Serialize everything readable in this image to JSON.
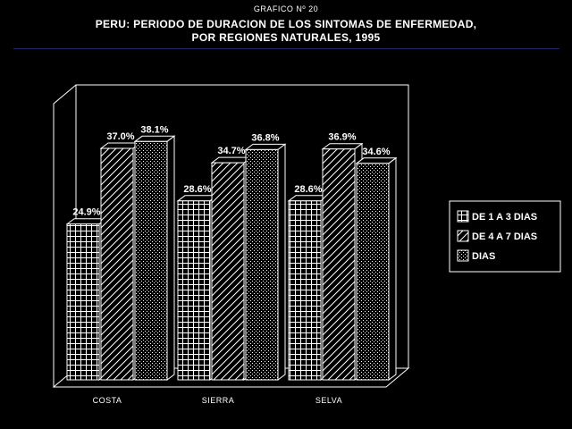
{
  "header": {
    "supertitle": "GRAFICO Nº 20",
    "title_line1": "PERU: PERIODO DE DURACION DE LOS SINTOMAS DE ENFERMEDAD,",
    "title_line2": "POR REGIONES NATURALES, 1995"
  },
  "colors": {
    "background": "#000000",
    "foreground": "#ffffff",
    "rule": "#1c1ca8"
  },
  "chart_data": {
    "type": "bar",
    "three_d": true,
    "categories": [
      "COSTA",
      "SIERRA",
      "SELVA"
    ],
    "series": [
      {
        "name": "DE 1 A 3 DIAS",
        "pattern": "grid",
        "values": [
          24.9,
          28.6,
          28.6
        ],
        "labels": [
          "24.9%",
          "28.6%",
          "28.6%"
        ]
      },
      {
        "name": "DE 4 A 7 DIAS",
        "pattern": "diagonal",
        "values": [
          37.0,
          34.7,
          36.9
        ],
        "labels": [
          "37.0%",
          "34.7%",
          "36.9%"
        ]
      },
      {
        "name": "DIAS",
        "pattern": "dots",
        "values": [
          38.1,
          36.8,
          34.6
        ],
        "labels": [
          "38.1%",
          "36.8%",
          "34.6%"
        ]
      }
    ],
    "ylim": [
      0,
      50
    ],
    "grid": false,
    "legend_position": "right"
  }
}
